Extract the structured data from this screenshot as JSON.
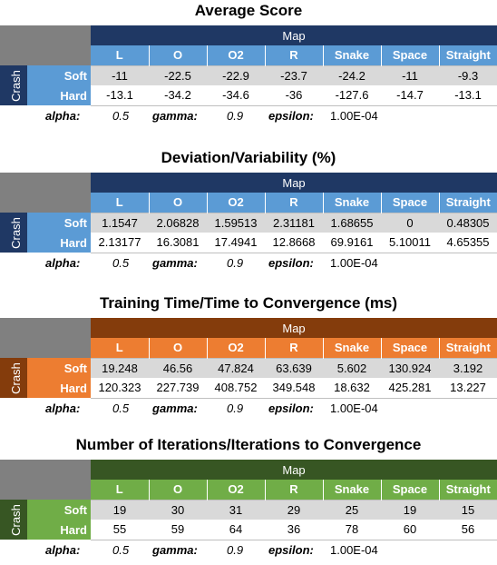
{
  "tables": [
    {
      "title": "Average Score",
      "map_label": "Map",
      "crash_label": "Crash",
      "columns": [
        "L",
        "O",
        "O2",
        "R",
        "Snake",
        "Space",
        "Straight"
      ],
      "rows": [
        {
          "label": "Soft",
          "values": [
            "-11",
            "-22.5",
            "-22.9",
            "-23.7",
            "-24.2",
            "-11",
            "-9.3"
          ]
        },
        {
          "label": "Hard",
          "values": [
            "-13.1",
            "-34.2",
            "-34.6",
            "-36",
            "-127.6",
            "-14.7",
            "-13.1"
          ]
        }
      ],
      "params": {
        "alpha_label": "alpha:",
        "alpha": "0.5",
        "gamma_label": "gamma:",
        "gamma": "0.9",
        "epsilon_label": "epsilon:",
        "epsilon": "1.00E-04"
      },
      "colors": {
        "header": "#1f3864",
        "cols": "#5b9bd5",
        "side": "#5b9bd5",
        "crash": "#1f3864"
      }
    },
    {
      "title": "Deviation/Variability (%)",
      "map_label": "Map",
      "crash_label": "Crash",
      "columns": [
        "L",
        "O",
        "O2",
        "R",
        "Snake",
        "Space",
        "Straight"
      ],
      "rows": [
        {
          "label": "Soft",
          "values": [
            "1.1547",
            "2.06828",
            "1.59513",
            "2.31181",
            "1.68655",
            "0",
            "0.48305"
          ]
        },
        {
          "label": "Hard",
          "values": [
            "2.13177",
            "16.3081",
            "17.4941",
            "12.8668",
            "69.9161",
            "5.10011",
            "4.65355"
          ]
        }
      ],
      "params": {
        "alpha_label": "alpha:",
        "alpha": "0.5",
        "gamma_label": "gamma:",
        "gamma": "0.9",
        "epsilon_label": "epsilon:",
        "epsilon": "1.00E-04"
      },
      "colors": {
        "header": "#1f3864",
        "cols": "#5b9bd5",
        "side": "#5b9bd5",
        "crash": "#1f3864"
      }
    },
    {
      "title": "Training Time/Time to Convergence (ms)",
      "map_label": "Map",
      "crash_label": "Crash",
      "columns": [
        "L",
        "O",
        "O2",
        "R",
        "Snake",
        "Space",
        "Straight"
      ],
      "rows": [
        {
          "label": "Soft",
          "values": [
            "19.248",
            "46.56",
            "47.824",
            "63.639",
            "5.602",
            "130.924",
            "3.192"
          ]
        },
        {
          "label": "Hard",
          "values": [
            "120.323",
            "227.739",
            "408.752",
            "349.548",
            "18.632",
            "425.281",
            "13.227"
          ]
        }
      ],
      "params": {
        "alpha_label": "alpha:",
        "alpha": "0.5",
        "gamma_label": "gamma:",
        "gamma": "0.9",
        "epsilon_label": "epsilon:",
        "epsilon": "1.00E-04"
      },
      "colors": {
        "header": "#843c0c",
        "cols": "#ed7d31",
        "side": "#ed7d31",
        "crash": "#843c0c"
      }
    },
    {
      "title": "Number of Iterations/Iterations to Convergence",
      "map_label": "Map",
      "crash_label": "Crash",
      "columns": [
        "L",
        "O",
        "O2",
        "R",
        "Snake",
        "Space",
        "Straight"
      ],
      "rows": [
        {
          "label": "Soft",
          "values": [
            "19",
            "30",
            "31",
            "29",
            "25",
            "19",
            "15"
          ]
        },
        {
          "label": "Hard",
          "values": [
            "55",
            "59",
            "64",
            "36",
            "78",
            "60",
            "56"
          ]
        }
      ],
      "params": {
        "alpha_label": "alpha:",
        "alpha": "0.5",
        "gamma_label": "gamma:",
        "gamma": "0.9",
        "epsilon_label": "epsilon:",
        "epsilon": "1.00E-04"
      },
      "colors": {
        "header": "#375623",
        "cols": "#70ad47",
        "side": "#70ad47",
        "crash": "#375623"
      }
    }
  ]
}
